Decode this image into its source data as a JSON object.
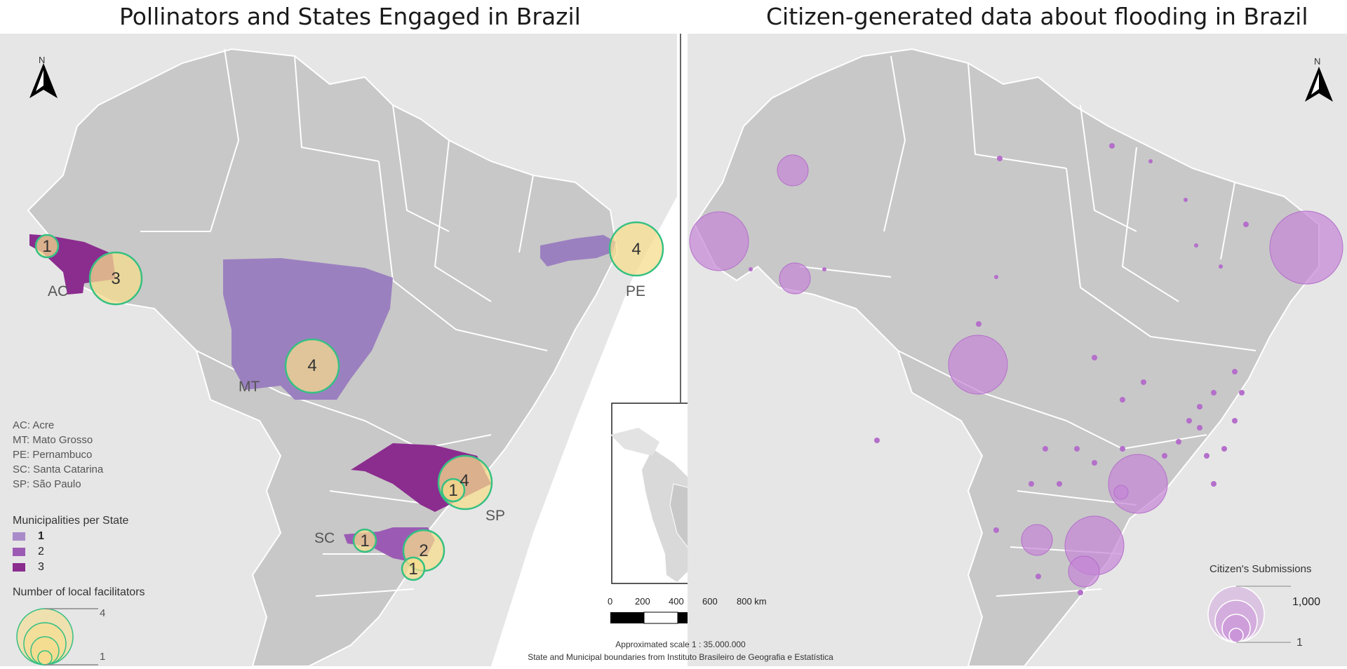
{
  "titles": {
    "left": "Pollinators and States Engaged in Brazil",
    "right": "Citizen-generated data about flooding in Brazil"
  },
  "state_labels": {
    "ac": "AC",
    "mt": "MT",
    "pe": "PE",
    "sc": "SC",
    "sp": "SP"
  },
  "north": "N",
  "abbreviations": [
    "AC: Acre",
    "MT: Mato Grosso",
    "PE: Pernambuco",
    "SC: Santa Catarina",
    "SP: São Paulo"
  ],
  "legend_municipalities": {
    "title": "Municipalities per State",
    "items": [
      {
        "label": "1",
        "color": "#a98bc9"
      },
      {
        "label": "2",
        "color": "#9b5bb4"
      },
      {
        "label": "3",
        "color": "#8b2c8f"
      }
    ]
  },
  "legend_facilitators": {
    "title": "Number of local facilitators",
    "max": "4",
    "min": "1"
  },
  "facilitator_bubbles": [
    {
      "value": "1"
    },
    {
      "value": "3"
    },
    {
      "value": "4"
    },
    {
      "value": "4"
    },
    {
      "value": "4"
    },
    {
      "value": "1"
    },
    {
      "value": "1"
    },
    {
      "value": "2"
    },
    {
      "value": "1"
    }
  ],
  "scale_bar": {
    "ticks": [
      "0",
      "200",
      "400",
      "600",
      "800 km"
    ]
  },
  "footer": {
    "scale": "Approximated scale 1 : 35.000.000",
    "source": "State and Municipal boundaries from Instituto Brasileiro de Geografia e Estatística"
  },
  "legend_submissions": {
    "title": "Citizen's Submissions",
    "max": "1,000",
    "min": "1"
  },
  "colors": {
    "state_fill": "#c8c8c8",
    "background_land": "#e6e6e6",
    "border": "#ffffff",
    "bubble_fill": "#f5dc8c",
    "bubble_stroke": "#35c083",
    "submission_fill": "#c585d6"
  }
}
